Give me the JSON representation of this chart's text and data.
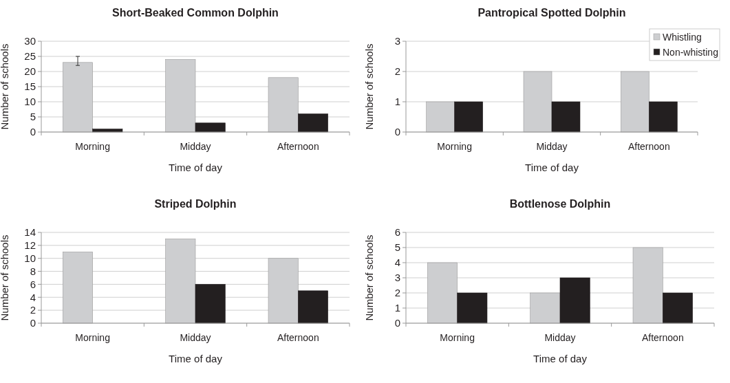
{
  "chart_data": [
    {
      "type": "bar",
      "title": "Short-Beaked Common Dolphin",
      "xlabel": "Time of day",
      "ylabel": "Number of schools",
      "categories": [
        "Morning",
        "Midday",
        "Afternoon"
      ],
      "series": [
        {
          "color": "#cdced0",
          "values": [
            23,
            24,
            18
          ],
          "errors": [
            [
              22,
              25
            ],
            null,
            null
          ]
        },
        {
          "color": "#231f20",
          "values": [
            1,
            3,
            6
          ]
        }
      ],
      "ylim": [
        0,
        30
      ],
      "yticks": [
        0,
        5,
        10,
        15,
        20,
        25,
        30
      ],
      "grid": "y"
    },
    {
      "type": "bar",
      "title": "Pantropical Spotted Dolphin",
      "xlabel": "Time of day",
      "ylabel": "Number of schools",
      "categories": [
        "Morning",
        "Midday",
        "Afternoon"
      ],
      "series": [
        {
          "name": "Whistling",
          "color": "#cdced0",
          "values": [
            1,
            2,
            2
          ]
        },
        {
          "name": "Non-whisting",
          "color": "#231f20",
          "values": [
            1,
            1,
            1
          ]
        }
      ],
      "ylim": [
        0,
        3
      ],
      "yticks": [
        0,
        1,
        2,
        3
      ],
      "grid": "y",
      "legend": "top right"
    },
    {
      "type": "bar",
      "title": "Striped Dolphin",
      "xlabel": "Time of day",
      "ylabel": "Number of schools",
      "categories": [
        "Morning",
        "Midday",
        "Afternoon"
      ],
      "series": [
        {
          "color": "#cdced0",
          "values": [
            11,
            13,
            10
          ]
        },
        {
          "color": "#231f20",
          "values": [
            0,
            6,
            5
          ]
        }
      ],
      "ylim": [
        0,
        14
      ],
      "yticks": [
        0,
        2,
        4,
        6,
        8,
        10,
        12,
        14
      ],
      "grid": "y"
    },
    {
      "type": "bar",
      "title": "Bottlenose Dolphin",
      "xlabel": "Time of day",
      "ylabel": "Number of schools",
      "categories": [
        "Morning",
        "Midday",
        "Afternoon"
      ],
      "series": [
        {
          "color": "#cdced0",
          "values": [
            4,
            2,
            5
          ]
        },
        {
          "color": "#231f20",
          "values": [
            2,
            3,
            2
          ]
        }
      ],
      "ylim": [
        0,
        6
      ],
      "yticks": [
        0,
        1,
        2,
        3,
        4,
        5,
        6
      ],
      "grid": "y"
    }
  ]
}
